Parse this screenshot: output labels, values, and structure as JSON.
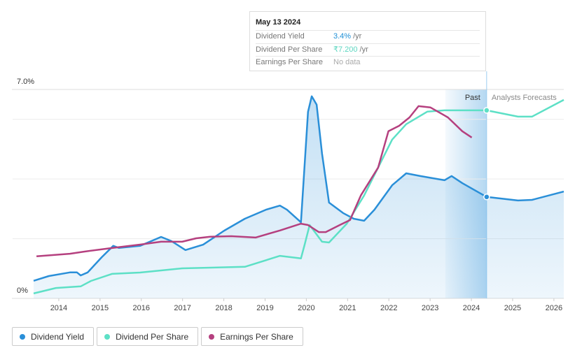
{
  "chart_data": {
    "type": "line",
    "xlim": [
      2013.39,
      2026.24
    ],
    "xticks": [
      2014,
      2015,
      2016,
      2017,
      2018,
      2019,
      2020,
      2021,
      2022,
      2023,
      2024,
      2025,
      2026
    ],
    "ylim": [
      0,
      7
    ],
    "yticks": [
      {
        "value": 0,
        "label": "0%"
      },
      {
        "value": 7,
        "label": "7.0%"
      }
    ],
    "grid_lines": [
      2,
      4,
      6
    ],
    "y2lim": [
      0,
      8
    ],
    "hover_x": 2024.37,
    "past_band": {
      "label": "Past",
      "xlim": [
        2023.37,
        2024.37
      ]
    },
    "forecast_label": "Analysts Forecasts",
    "tooltip": {
      "date": "May 13 2024",
      "rows": [
        {
          "label": "Dividend Yield",
          "value": "3.4%",
          "unit": "/yr",
          "color": "#1e8fd6"
        },
        {
          "label": "Dividend Per Share",
          "value": "₹7.200",
          "unit": "/yr",
          "color": "#5cd6c0"
        },
        {
          "label": "Earnings Per Share",
          "value": "No data",
          "color": "#aaaaaa"
        }
      ]
    },
    "series": [
      {
        "name": "Dividend Yield",
        "color": "#2a8fd8",
        "area": true,
        "x": [
          2013.39,
          2013.76,
          2014.27,
          2014.44,
          2014.53,
          2014.7,
          2015.04,
          2015.32,
          2015.46,
          2015.97,
          2016.48,
          2016.73,
          2017.07,
          2017.5,
          2018.01,
          2018.51,
          2019.02,
          2019.36,
          2019.53,
          2019.87,
          2020.04,
          2020.13,
          2020.25,
          2020.38,
          2020.55,
          2020.89,
          2021.15,
          2021.4,
          2021.65,
          2022.08,
          2022.42,
          2022.76,
          2023.35,
          2023.52,
          2023.78,
          2024.37,
          2025.13,
          2025.47,
          2026.24
        ],
        "values": [
          0.59,
          0.75,
          0.87,
          0.87,
          0.77,
          0.87,
          1.38,
          1.76,
          1.69,
          1.76,
          2.06,
          1.92,
          1.62,
          1.8,
          2.27,
          2.67,
          2.97,
          3.11,
          2.97,
          2.55,
          6.25,
          6.77,
          6.49,
          4.85,
          3.21,
          2.86,
          2.67,
          2.6,
          2.97,
          3.79,
          4.19,
          4.1,
          3.96,
          4.1,
          3.86,
          3.4,
          3.28,
          3.3,
          3.58
        ]
      },
      {
        "name": "Dividend Per Share",
        "color": "#5de0c6",
        "axis": "y2",
        "x": [
          2013.39,
          2013.93,
          2014.53,
          2014.78,
          2015.29,
          2015.97,
          2016.99,
          2018.51,
          2019.36,
          2019.87,
          2019.96,
          2020.08,
          2020.38,
          2020.55,
          2020.98,
          2021.4,
          2021.74,
          2022.08,
          2022.42,
          2022.93,
          2023.35,
          2024.37,
          2025.13,
          2025.47,
          2026.24
        ],
        "values": [
          0.19,
          0.4,
          0.46,
          0.67,
          0.94,
          0.99,
          1.15,
          1.21,
          1.63,
          1.53,
          2.06,
          2.81,
          2.17,
          2.14,
          2.86,
          3.94,
          5.01,
          6.08,
          6.67,
          7.15,
          7.2,
          7.2,
          6.96,
          6.96,
          7.6
        ]
      },
      {
        "name": "Earnings Per Share",
        "color": "#b5407f",
        "axis": "y2",
        "x": [
          2013.46,
          2014.27,
          2014.61,
          2015.29,
          2015.97,
          2016.48,
          2016.99,
          2017.33,
          2017.67,
          2018.18,
          2018.77,
          2019.36,
          2019.87,
          2020.04,
          2020.3,
          2020.47,
          2020.81,
          2021.06,
          2021.32,
          2021.74,
          2021.99,
          2022.25,
          2022.5,
          2022.72,
          2023.01,
          2023.43,
          2023.78,
          2024.01
        ],
        "values": [
          1.61,
          1.71,
          1.79,
          1.93,
          2.06,
          2.17,
          2.17,
          2.3,
          2.36,
          2.38,
          2.33,
          2.6,
          2.86,
          2.81,
          2.54,
          2.54,
          2.81,
          3.0,
          3.94,
          5.01,
          6.4,
          6.61,
          6.93,
          7.36,
          7.31,
          6.93,
          6.4,
          6.16
        ]
      }
    ]
  }
}
